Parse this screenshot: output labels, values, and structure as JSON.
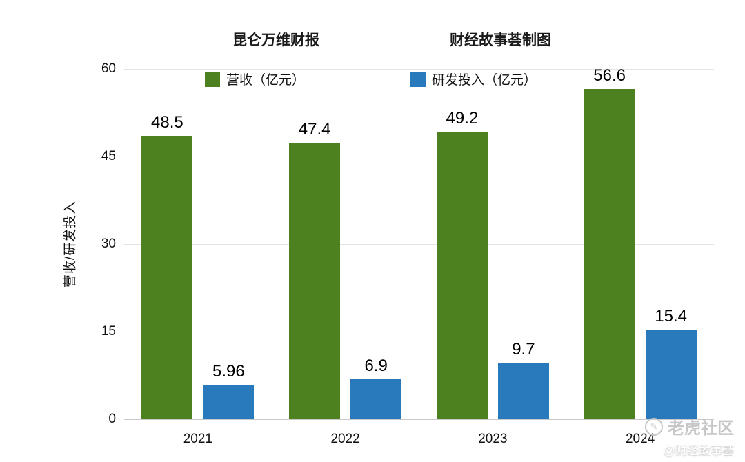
{
  "chart_data": {
    "type": "bar",
    "title_left": "昆仑万维财报",
    "title_right": "财经故事荟制图",
    "categories": [
      "2021",
      "2022",
      "2023",
      "2024"
    ],
    "series": [
      {
        "name": "营收（亿元）",
        "color": "#4d801f",
        "values": [
          48.5,
          47.4,
          49.2,
          56.6
        ],
        "labels": [
          "48.5",
          "47.4",
          "49.2",
          "56.6"
        ]
      },
      {
        "name": "研发投入（亿元）",
        "color": "#2979bd",
        "values": [
          5.96,
          6.9,
          9.7,
          15.4
        ],
        "labels": [
          "5.96",
          "6.9",
          "9.7",
          "15.4"
        ]
      }
    ],
    "ylabel": "营收/研发投入",
    "yticks": [
      0,
      15,
      30,
      45,
      60
    ],
    "ylim": [
      0,
      60
    ],
    "grid": true,
    "legend_position": "top"
  },
  "watermark": {
    "brand": "老虎社区",
    "handle": "@财经故事荟",
    "logo_glyph": "✎"
  }
}
